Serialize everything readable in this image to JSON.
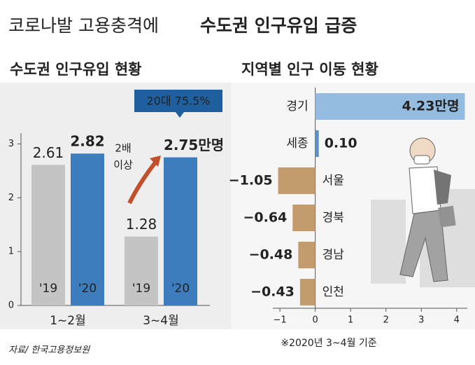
{
  "header": {
    "title_light": "코로나발 고용충격에",
    "title_bold": "수도권 인구유입 급증"
  },
  "chart_data": [
    {
      "type": "bar",
      "title": "수도권 인구유입 현황",
      "categories": [
        "1~2월",
        "3~4월"
      ],
      "series": [
        {
          "name": "'19",
          "color": "#c4c4c4",
          "values": [
            2.61,
            1.28
          ]
        },
        {
          "name": "'20",
          "color": "#3e7dbd",
          "values": [
            2.82,
            2.75
          ],
          "value_labels": [
            "2.82",
            "2.75만명"
          ]
        }
      ],
      "ylim": [
        0,
        3.2
      ],
      "yticks": [
        0,
        1,
        2,
        3
      ],
      "callout": "20대 75.5%",
      "arrow_note": [
        "2배",
        "이상"
      ]
    },
    {
      "type": "barh",
      "title": "지역별 인구 이동 현황",
      "categories": [
        "경기",
        "세종",
        "서울",
        "경북",
        "경남",
        "인천"
      ],
      "values": [
        4.23,
        0.1,
        -1.05,
        -0.64,
        -0.48,
        -0.43
      ],
      "value_labels": [
        "4.23만명",
        "0.10",
        "−1.05",
        "−0.64",
        "−0.48",
        "−0.43"
      ],
      "colors": [
        "#93bce0",
        "#5a92c8",
        "#c49b6c",
        "#c49b6c",
        "#c49b6c",
        "#c49b6c"
      ],
      "xlim": [
        -1.2,
        4.3
      ],
      "xticks": [
        {
          "value": -1,
          "label": "−1"
        },
        0,
        1,
        2,
        3,
        4
      ],
      "note": "※2020년 3~4월 기준"
    }
  ],
  "source": "자료/ 한국고용정보원"
}
